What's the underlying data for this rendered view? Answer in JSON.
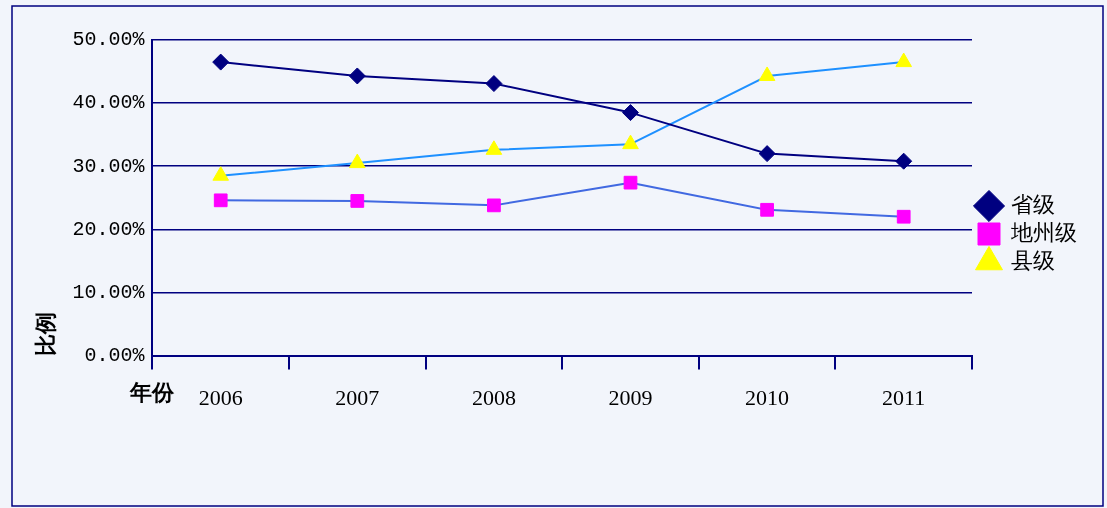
{
  "chart_data": {
    "type": "line",
    "xlabel": "年份",
    "ylabel": "比例",
    "categories": [
      "2006",
      "2007",
      "2008",
      "2009",
      "2010",
      "2011"
    ],
    "ylim": [
      0,
      50
    ],
    "yticks": [
      {
        "value": 0,
        "label": "0.00%"
      },
      {
        "value": 10,
        "label": "10.00%"
      },
      {
        "value": 20,
        "label": "20.00%"
      },
      {
        "value": 30,
        "label": "30.00%"
      },
      {
        "value": 40,
        "label": "40.00%"
      },
      {
        "value": 50,
        "label": "50.00%"
      }
    ],
    "grid": "y",
    "legend": "right",
    "series": [
      {
        "name": "省级",
        "color": "#000080",
        "marker": "diamond",
        "values": [
          46.5,
          44.3,
          43.1,
          38.5,
          32.0,
          30.8
        ]
      },
      {
        "name": "地州级",
        "color": "#4169e1",
        "marker": "square",
        "colors": [
          "#ff00ff",
          "#ff00ff",
          "#ff00ff",
          "#ff00ff",
          "#ff00ff",
          "#ff00ff"
        ],
        "values": [
          24.6,
          24.5,
          23.8,
          27.4,
          23.1,
          22.0
        ]
      },
      {
        "name": "县级",
        "color": "#1e90ff",
        "marker": "triangle",
        "colors": [
          "#ffff00",
          "#ffff00",
          "#ffff00",
          "#ffff00",
          "#ffff00",
          "#ffff00"
        ],
        "values": [
          28.5,
          30.5,
          32.6,
          33.5,
          44.3,
          46.5
        ]
      }
    ]
  }
}
